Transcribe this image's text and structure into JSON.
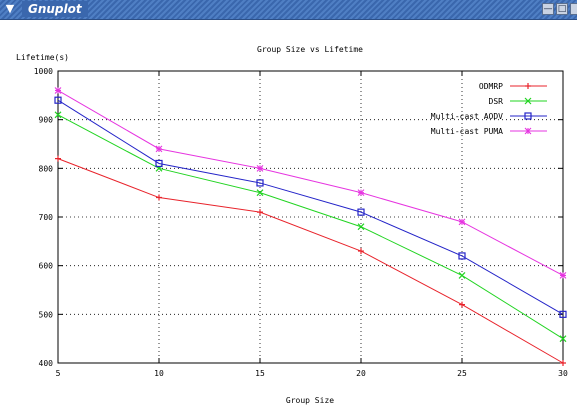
{
  "window": {
    "title": "Gnuplot",
    "menu_icon": "chevron-down-icon",
    "controls": [
      "minimize-icon",
      "maximize-icon",
      "close-icon"
    ]
  },
  "chart_data": {
    "type": "line",
    "title": "Group Size vs Lifetime",
    "xlabel": "Group Size",
    "ylabel": "Lifetime(s)",
    "x": [
      5,
      10,
      15,
      20,
      25,
      30
    ],
    "xlim": [
      5,
      30
    ],
    "ylim": [
      400,
      1000
    ],
    "xticks": [
      5,
      10,
      15,
      20,
      25,
      30
    ],
    "yticks": [
      400,
      500,
      600,
      700,
      800,
      900,
      1000
    ],
    "grid": true,
    "legend": "top-right",
    "series": [
      {
        "name": "ODMRP",
        "color": "#e8232b",
        "marker": "plus",
        "values": [
          820,
          740,
          710,
          630,
          520,
          400
        ]
      },
      {
        "name": "DSR",
        "color": "#22d422",
        "marker": "cross",
        "values": [
          910,
          800,
          750,
          680,
          580,
          450
        ]
      },
      {
        "name": "Multi-cast AODV",
        "color": "#2424c8",
        "marker": "square",
        "values": [
          940,
          810,
          770,
          710,
          620,
          500
        ]
      },
      {
        "name": "Multi-cast PUMA",
        "color": "#e635e0",
        "marker": "star",
        "values": [
          960,
          840,
          800,
          750,
          690,
          580
        ]
      }
    ]
  }
}
